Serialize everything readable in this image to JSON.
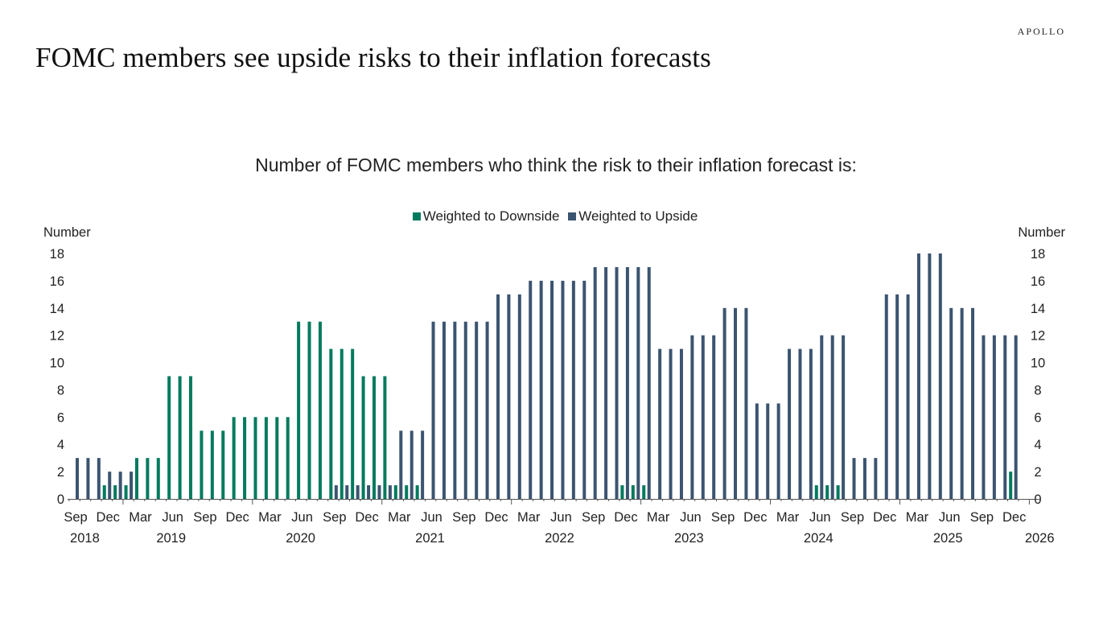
{
  "header": {
    "title": "FOMC members see upside risks to their inflation forecasts",
    "logo": "APOLLO"
  },
  "chart_data": {
    "type": "bar",
    "title": "Number of FOMC members who think the risk to their inflation forecast is:",
    "ylabel_left": "Number",
    "ylabel_right": "Number",
    "ylim": [
      0,
      18
    ],
    "yticks": [
      0,
      2,
      4,
      6,
      8,
      10,
      12,
      14,
      16,
      18
    ],
    "x_start": "2018-09",
    "x_end": "2025-12",
    "x_frequency": "monthly",
    "xtick_month_labels": [
      "Sep",
      "Dec",
      "Mar",
      "Jun",
      "Sep",
      "Dec",
      "Mar",
      "Jun",
      "Sep",
      "Dec",
      "Mar",
      "Jun",
      "Sep",
      "Dec",
      "Mar",
      "Jun",
      "Sep",
      "Dec",
      "Mar",
      "Jun",
      "Sep",
      "Dec",
      "Mar",
      "Jun",
      "Sep",
      "Dec",
      "Mar",
      "Jun",
      "Sep",
      "Dec"
    ],
    "xtick_year_labels": [
      "2018",
      "2019",
      "2020",
      "2021",
      "2022",
      "2023",
      "2024",
      "2025",
      "2026"
    ],
    "legend_position": "top",
    "grid": false,
    "colors": {
      "downside": "#007A5E",
      "upside": "#3B5470"
    },
    "series": [
      {
        "name": "Weighted to Downside",
        "values": [
          0,
          0,
          0,
          1,
          1,
          1,
          3,
          3,
          3,
          9,
          9,
          9,
          5,
          5,
          5,
          6,
          6,
          6,
          6,
          6,
          6,
          13,
          13,
          13,
          11,
          11,
          11,
          9,
          9,
          9,
          1,
          1,
          1,
          0,
          0,
          0,
          0,
          0,
          0,
          0,
          0,
          0,
          0,
          0,
          0,
          0,
          0,
          0,
          0,
          0,
          0,
          1,
          1,
          1,
          0,
          0,
          0,
          0,
          0,
          0,
          0,
          0,
          0,
          0,
          0,
          0,
          0,
          0,
          0,
          1,
          1,
          1,
          0,
          0,
          0,
          0,
          0,
          0,
          0,
          0,
          0,
          0,
          0,
          0,
          0,
          0,
          0,
          2
        ]
      },
      {
        "name": "Weighted to Upside",
        "values": [
          3,
          3,
          3,
          2,
          2,
          2,
          0,
          0,
          0,
          0,
          0,
          0,
          0,
          0,
          0,
          0,
          0,
          0,
          0,
          0,
          0,
          0,
          0,
          0,
          1,
          1,
          1,
          1,
          1,
          1,
          5,
          5,
          5,
          13,
          13,
          13,
          13,
          13,
          13,
          15,
          15,
          15,
          16,
          16,
          16,
          16,
          16,
          16,
          17,
          17,
          17,
          17,
          17,
          17,
          11,
          11,
          11,
          12,
          12,
          12,
          14,
          14,
          14,
          7,
          7,
          7,
          11,
          11,
          11,
          12,
          12,
          12,
          3,
          3,
          3,
          15,
          15,
          15,
          18,
          18,
          18,
          14,
          14,
          14,
          12,
          12,
          12,
          12
        ]
      }
    ]
  }
}
